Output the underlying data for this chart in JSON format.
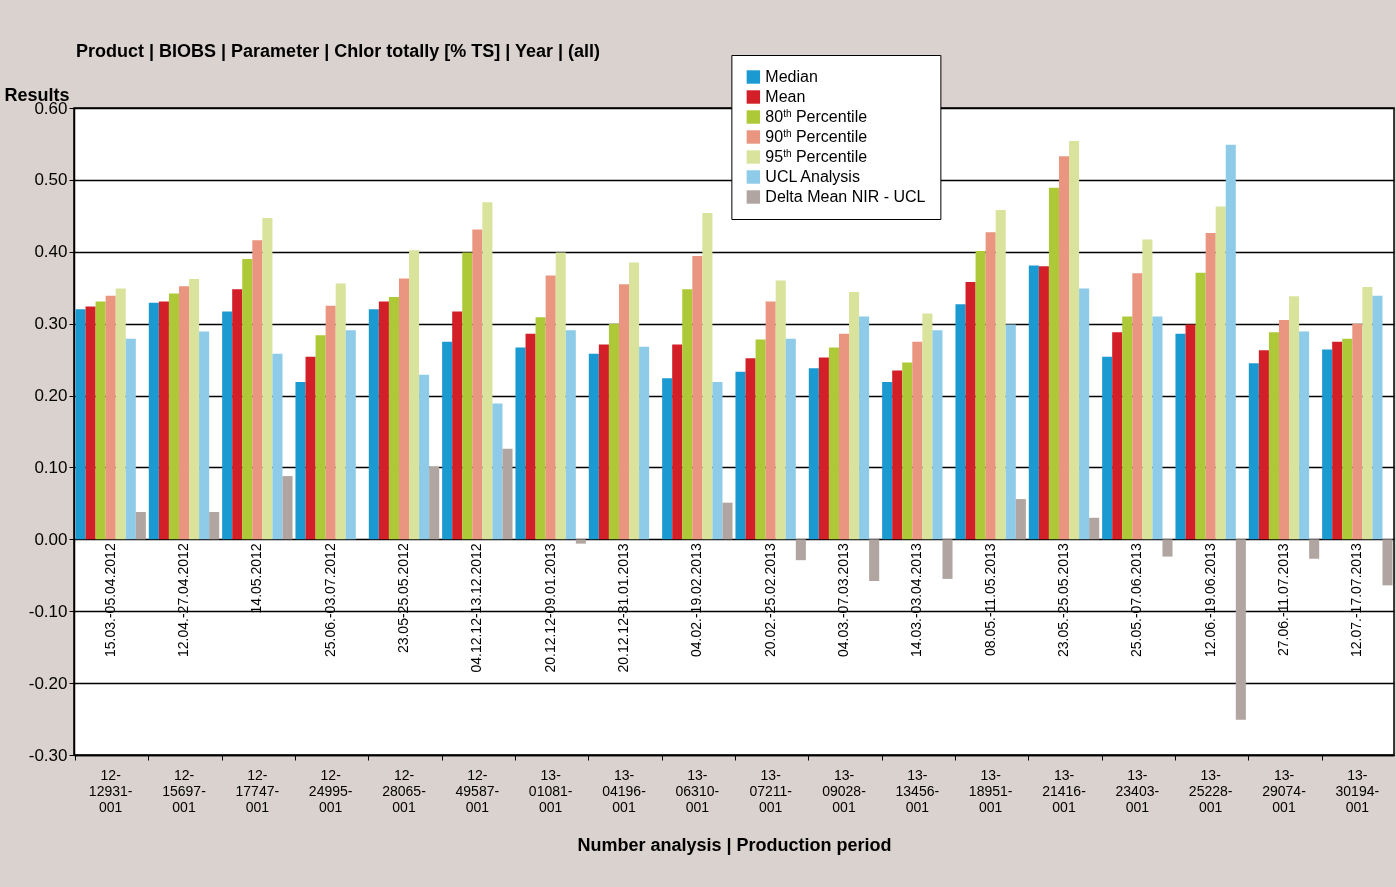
{
  "chart_data": {
    "type": "bar",
    "title": "Product | BIOBS | Parameter | Chlor totally [% TS] | Year | (all)",
    "xlabel": "Number analysis | Production period",
    "ylabel": "Results",
    "categories": [
      "12-12931-001",
      "12-15697-001",
      "12-17747-001",
      "12-24995-001",
      "12-28065-001",
      "12-49587-001",
      "13-01081-001",
      "13-04196-001",
      "13-06310-001",
      "13-07211-001",
      "13-09028-001",
      "13-13456-001",
      "13-18951-001",
      "13-21416-001",
      "13-23403-001",
      "13-25228-001",
      "13-29074-001",
      "13-30194-001"
    ],
    "series": [
      {
        "name": "Median",
        "color": "#1b99d1",
        "values": [
          0.32,
          0.329,
          0.317,
          0.219,
          0.32,
          0.275,
          0.267,
          0.258,
          0.224,
          0.233,
          0.238,
          0.219,
          0.327,
          0.381,
          0.254,
          0.286,
          0.245,
          0.264
        ]
      },
      {
        "name": "Mean",
        "color": "#d31f28",
        "values": [
          0.324,
          0.331,
          0.348,
          0.254,
          0.331,
          0.317,
          0.286,
          0.271,
          0.271,
          0.252,
          0.253,
          0.235,
          0.358,
          0.38,
          0.288,
          0.299,
          0.263,
          0.275
        ]
      },
      {
        "name": "80$^{th}$ Percentile",
        "color": "#adc937",
        "values": [
          0.331,
          0.342,
          0.39,
          0.284,
          0.337,
          0.399,
          0.309,
          0.3,
          0.348,
          0.278,
          0.267,
          0.246,
          0.401,
          0.489,
          0.31,
          0.371,
          0.288,
          0.279
        ]
      },
      {
        "name": "90$^{th}$ Percentile",
        "color": "#e9957f",
        "values": [
          0.339,
          0.352,
          0.416,
          0.325,
          0.363,
          0.431,
          0.367,
          0.355,
          0.394,
          0.331,
          0.286,
          0.275,
          0.427,
          0.533,
          0.37,
          0.426,
          0.305,
          0.3
        ]
      },
      {
        "name": "95$^{th}$ Percentile",
        "color": "#dae39c",
        "values": [
          0.349,
          0.362,
          0.447,
          0.356,
          0.402,
          0.469,
          0.399,
          0.385,
          0.454,
          0.36,
          0.344,
          0.314,
          0.458,
          0.554,
          0.417,
          0.463,
          0.338,
          0.351
        ]
      },
      {
        "name": "UCL Analysis",
        "color": "#8dcbe9",
        "values": [
          0.279,
          0.289,
          0.258,
          0.291,
          0.229,
          0.189,
          0.291,
          0.268,
          0.219,
          0.279,
          0.31,
          0.291,
          0.299,
          0.349,
          0.31,
          0.549,
          0.289,
          0.339
        ]
      },
      {
        "name": "Delta Mean NIR - UCL",
        "color": "#b0a5a0",
        "values": [
          0.038,
          0.038,
          0.088,
          null,
          0.101,
          0.126,
          -0.006,
          null,
          0.051,
          -0.029,
          -0.058,
          -0.055,
          0.056,
          0.03,
          -0.024,
          -0.251,
          -0.027,
          -0.064
        ]
      }
    ],
    "ylim": [
      -0.3,
      0.6
    ],
    "yticks": [
      {
        "value": -0.3,
        "label": "-0.30"
      },
      {
        "value": -0.2,
        "label": "-0.20"
      },
      {
        "value": -0.1,
        "label": "-0.10"
      },
      {
        "value": 0,
        "label": "0.00"
      },
      {
        "value": 0.1,
        "label": "0.10"
      },
      {
        "value": 0.2,
        "label": "0.20"
      },
      {
        "value": 0.3,
        "label": "0.30"
      },
      {
        "value": 0.4,
        "label": "0.40"
      },
      {
        "value": 0.5,
        "label": "0.50"
      },
      {
        "value": 0.6,
        "label": "0.60"
      }
    ],
    "grid": "y",
    "legend": "top",
    "annotations": [
      "15.03.-05.04.2012",
      "12.04.-27.04.2012",
      "14.05.2012",
      "25.06.-03.07.2012",
      "23.05-25.05.2012",
      "04.12.12-13.12.2012",
      "20.12.12-09.01.2013",
      "20.12.12-31.01.2013",
      "04.02.-19.02.2013",
      "20.02.-25.02.2013",
      "04.03.-07.03.2013",
      "14.03.-03.04.2013",
      "08.05.-11.05.2013",
      "23.05.-25.05.2013",
      "25.05.-07.06.2013",
      "12.06.-19.06.2013",
      "27.06.-11.07.2013",
      "12.07.-17.07.2013"
    ]
  }
}
